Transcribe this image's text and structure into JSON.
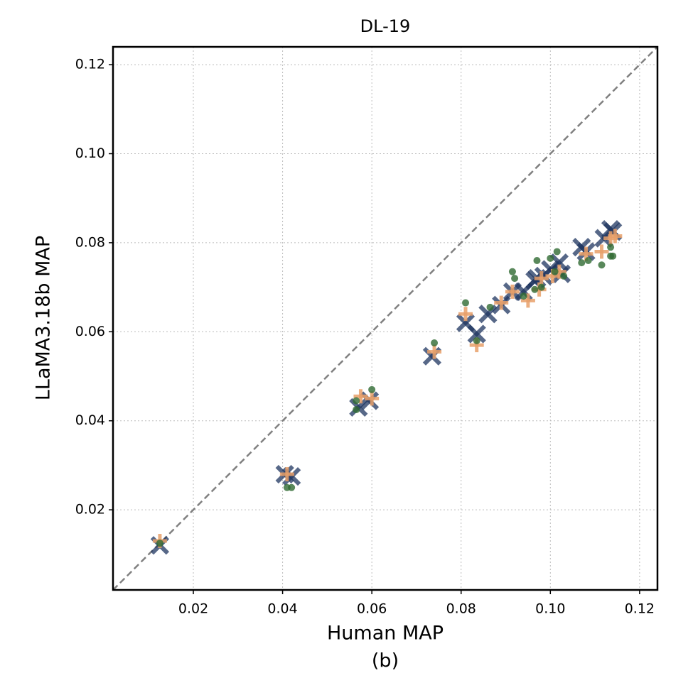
{
  "chart_data": {
    "type": "scatter",
    "title": "DL-19",
    "xlabel": "Human MAP",
    "caption": "(b)",
    "ylabel": "LLaMA3.18b MAP",
    "xlim": [
      0.002,
      0.124
    ],
    "ylim": [
      0.002,
      0.124
    ],
    "xticks": [
      0.02,
      0.04,
      0.06,
      0.08,
      {
        "value": 0.1,
        "label": "0.10"
      },
      0.12
    ],
    "yticks": [
      0.02,
      0.04,
      0.06,
      0.08,
      {
        "value": 0.1,
        "label": "0.10"
      },
      0.12
    ],
    "grid": true,
    "series": [
      {
        "marker": "x",
        "color": "#1f3560",
        "x": [
          0.0125,
          0.0405,
          0.042,
          0.057,
          0.0595,
          0.0735,
          0.081,
          0.0835,
          0.086,
          0.089,
          0.0915,
          0.094,
          0.0965,
          0.097,
          0.0985,
          0.1,
          0.102,
          0.1025,
          0.107,
          0.108,
          0.112,
          0.1135,
          0.114
        ],
        "y": [
          0.012,
          0.028,
          0.0275,
          0.043,
          0.0445,
          0.0545,
          0.062,
          0.0595,
          0.064,
          0.066,
          0.069,
          0.069,
          0.0715,
          0.072,
          0.0725,
          0.074,
          0.0755,
          0.073,
          0.079,
          0.078,
          0.081,
          0.083,
          0.0825
        ]
      },
      {
        "marker": "+",
        "color": "#e8a06a",
        "x": [
          0.0125,
          0.041,
          0.0575,
          0.06,
          0.074,
          0.081,
          0.0835,
          0.089,
          0.0915,
          0.095,
          0.0975,
          0.098,
          0.1005,
          0.102,
          0.108,
          0.1115,
          0.1135,
          0.1145
        ],
        "y": [
          0.013,
          0.028,
          0.0455,
          0.045,
          0.0555,
          0.064,
          0.057,
          0.0665,
          0.069,
          0.067,
          0.0695,
          0.072,
          0.0725,
          0.0735,
          0.0775,
          0.078,
          0.081,
          0.0815
        ]
      },
      {
        "marker": "o",
        "color": "#2f6a32",
        "x": [
          0.0125,
          0.041,
          0.042,
          0.0565,
          0.0565,
          0.06,
          0.074,
          0.081,
          0.0835,
          0.0865,
          0.0915,
          0.092,
          0.094,
          0.0965,
          0.097,
          0.098,
          0.1,
          0.101,
          0.1015,
          0.103,
          0.107,
          0.1085,
          0.1115,
          0.1135,
          0.1135,
          0.114
        ],
        "y": [
          0.0125,
          0.025,
          0.025,
          0.0445,
          0.0425,
          0.047,
          0.0575,
          0.0665,
          0.058,
          0.0655,
          0.0735,
          0.072,
          0.068,
          0.0695,
          0.076,
          0.07,
          0.0765,
          0.0735,
          0.078,
          0.0725,
          0.0755,
          0.076,
          0.075,
          0.079,
          0.077,
          0.077
        ]
      }
    ]
  }
}
